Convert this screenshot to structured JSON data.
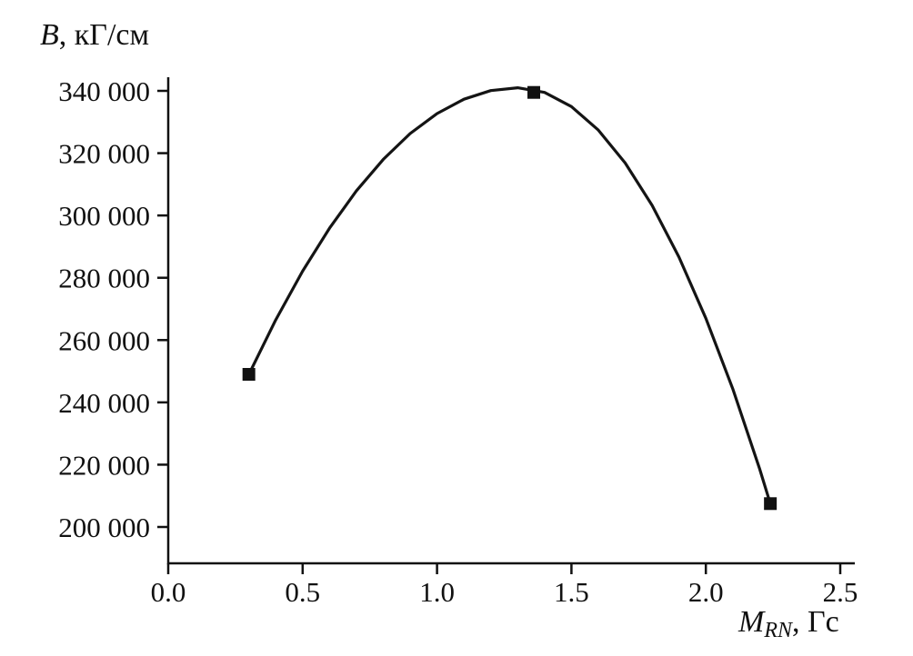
{
  "chart_data": {
    "type": "line",
    "title": "",
    "xlabel": "M_RN, Гс",
    "ylabel": "B, кГ/см",
    "xlim": [
      0.0,
      2.5
    ],
    "ylim": [
      195000,
      345000
    ],
    "grid": false,
    "legend": "none",
    "line_color": "#141414",
    "marker": "filled-square",
    "x_ticks": [
      0.0,
      0.5,
      1.0,
      1.5,
      2.0,
      2.5
    ],
    "x_tick_labels": [
      "0.0",
      "0.5",
      "1.0",
      "1.5",
      "2.0",
      "2.5"
    ],
    "y_ticks": [
      200000,
      220000,
      240000,
      260000,
      280000,
      300000,
      320000,
      340000
    ],
    "y_tick_labels": [
      "200 000",
      "220 000",
      "240 000",
      "260 000",
      "280 000",
      "300 000",
      "320 000",
      "340 000"
    ],
    "points": [
      {
        "x": 0.3,
        "y": 249000
      },
      {
        "x": 1.36,
        "y": 339500
      },
      {
        "x": 2.24,
        "y": 207500
      }
    ],
    "curve": [
      [
        0.3,
        249000
      ],
      [
        0.4,
        266480
      ],
      [
        0.5,
        282120
      ],
      [
        0.6,
        295920
      ],
      [
        0.7,
        307880
      ],
      [
        0.8,
        318000
      ],
      [
        0.9,
        326280
      ],
      [
        1.0,
        332720
      ],
      [
        1.1,
        337320
      ],
      [
        1.2,
        340080
      ],
      [
        1.3,
        341000
      ],
      [
        1.4,
        339490
      ],
      [
        1.5,
        334960
      ],
      [
        1.6,
        327410
      ],
      [
        1.7,
        316840
      ],
      [
        1.8,
        303250
      ],
      [
        1.9,
        286640
      ],
      [
        2.0,
        267010
      ],
      [
        2.1,
        244360
      ],
      [
        2.2,
        218690
      ],
      [
        2.24,
        207500
      ]
    ]
  },
  "y_axis_title": {
    "variable": "B",
    "rest": ", кГ/см"
  },
  "x_axis_title": {
    "variable": "M",
    "subscript": "RN",
    "rest": ", Гс"
  }
}
